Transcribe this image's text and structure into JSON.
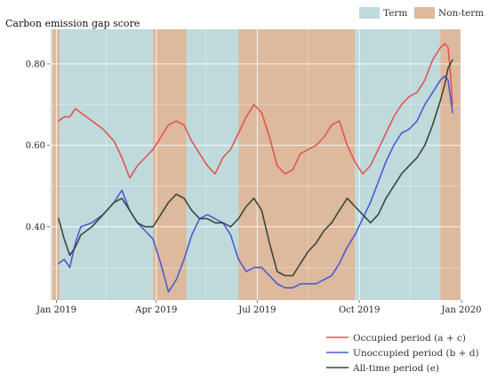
{
  "chart_data": {
    "type": "line",
    "title": "",
    "ylabel": "Carbon emission gap score",
    "xlabel": "",
    "x_range": [
      "2018-12-26",
      "2020-01-01"
    ],
    "ylim": [
      0.22,
      0.885
    ],
    "grid": true,
    "y_ticks": [
      {
        "value": 0.4,
        "label": "0.40"
      },
      {
        "value": 0.6,
        "label": "0.60"
      },
      {
        "value": 0.8,
        "label": "0.80"
      }
    ],
    "x_ticks": [
      {
        "value": "2019-01-01",
        "label": "Jan 2019"
      },
      {
        "value": "2019-04-01",
        "label": "Apr 2019"
      },
      {
        "value": "2019-07-01",
        "label": "Jul 2019"
      },
      {
        "value": "2019-10-01",
        "label": "Oct 2019"
      },
      {
        "value": "2020-01-01",
        "label": "Jan 2020"
      }
    ],
    "bands": [
      {
        "category": "Non-term",
        "start": "2018-12-28",
        "end": "2019-01-04"
      },
      {
        "category": "Term",
        "start": "2019-01-04",
        "end": "2019-03-29"
      },
      {
        "category": "Non-term",
        "start": "2019-03-29",
        "end": "2019-04-28"
      },
      {
        "category": "Term",
        "start": "2019-04-28",
        "end": "2019-06-14"
      },
      {
        "category": "Non-term",
        "start": "2019-06-14",
        "end": "2019-09-27"
      },
      {
        "category": "Term",
        "start": "2019-09-27",
        "end": "2019-12-13"
      },
      {
        "category": "Non-term",
        "start": "2019-12-13",
        "end": "2019-12-31"
      }
    ],
    "band_legend": [
      {
        "name": "Term",
        "color": "#bfdadb"
      },
      {
        "name": "Non-term",
        "color": "#ddb99d"
      }
    ],
    "series": [
      {
        "name": "Occupied period (a + c)",
        "color": "#e05555",
        "x": [
          "2019-01-03",
          "2019-01-08",
          "2019-01-13",
          "2019-01-18",
          "2019-01-23",
          "2019-02-02",
          "2019-02-12",
          "2019-02-22",
          "2019-03-01",
          "2019-03-08",
          "2019-03-15",
          "2019-03-22",
          "2019-03-29",
          "2019-04-05",
          "2019-04-12",
          "2019-04-19",
          "2019-04-26",
          "2019-05-03",
          "2019-05-10",
          "2019-05-17",
          "2019-05-24",
          "2019-05-31",
          "2019-06-07",
          "2019-06-14",
          "2019-06-21",
          "2019-06-28",
          "2019-07-05",
          "2019-07-12",
          "2019-07-19",
          "2019-07-26",
          "2019-08-02",
          "2019-08-09",
          "2019-08-16",
          "2019-08-23",
          "2019-08-30",
          "2019-09-06",
          "2019-09-13",
          "2019-09-20",
          "2019-09-27",
          "2019-10-04",
          "2019-10-11",
          "2019-10-18",
          "2019-10-25",
          "2019-11-01",
          "2019-11-08",
          "2019-11-15",
          "2019-11-22",
          "2019-11-29",
          "2019-12-06",
          "2019-12-13",
          "2019-12-17",
          "2019-12-20",
          "2019-12-22",
          "2019-12-24"
        ],
        "values": [
          0.66,
          0.67,
          0.67,
          0.69,
          0.68,
          0.66,
          0.64,
          0.61,
          0.57,
          0.52,
          0.55,
          0.57,
          0.59,
          0.62,
          0.65,
          0.66,
          0.65,
          0.61,
          0.58,
          0.55,
          0.53,
          0.57,
          0.59,
          0.63,
          0.67,
          0.7,
          0.68,
          0.62,
          0.55,
          0.53,
          0.54,
          0.58,
          0.59,
          0.6,
          0.62,
          0.65,
          0.66,
          0.6,
          0.56,
          0.53,
          0.55,
          0.59,
          0.63,
          0.67,
          0.7,
          0.72,
          0.73,
          0.76,
          0.81,
          0.84,
          0.85,
          0.84,
          0.78,
          0.7
        ]
      },
      {
        "name": "Unoccupied period (b + d)",
        "color": "#4a5ad6",
        "x": [
          "2019-01-03",
          "2019-01-08",
          "2019-01-13",
          "2019-01-18",
          "2019-01-23",
          "2019-02-02",
          "2019-02-12",
          "2019-02-22",
          "2019-03-01",
          "2019-03-08",
          "2019-03-15",
          "2019-03-22",
          "2019-03-29",
          "2019-04-05",
          "2019-04-12",
          "2019-04-19",
          "2019-04-26",
          "2019-05-03",
          "2019-05-10",
          "2019-05-17",
          "2019-05-24",
          "2019-05-31",
          "2019-06-07",
          "2019-06-14",
          "2019-06-21",
          "2019-06-28",
          "2019-07-05",
          "2019-07-12",
          "2019-07-19",
          "2019-07-26",
          "2019-08-02",
          "2019-08-09",
          "2019-08-16",
          "2019-08-23",
          "2019-08-30",
          "2019-09-06",
          "2019-09-13",
          "2019-09-20",
          "2019-09-27",
          "2019-10-04",
          "2019-10-11",
          "2019-10-18",
          "2019-10-25",
          "2019-11-01",
          "2019-11-08",
          "2019-11-15",
          "2019-11-22",
          "2019-11-29",
          "2019-12-06",
          "2019-12-13",
          "2019-12-17",
          "2019-12-20",
          "2019-12-22",
          "2019-12-24"
        ],
        "values": [
          0.31,
          0.32,
          0.3,
          0.36,
          0.4,
          0.41,
          0.43,
          0.46,
          0.49,
          0.44,
          0.41,
          0.39,
          0.37,
          0.31,
          0.24,
          0.27,
          0.32,
          0.38,
          0.42,
          0.43,
          0.42,
          0.41,
          0.38,
          0.32,
          0.29,
          0.3,
          0.3,
          0.28,
          0.26,
          0.25,
          0.25,
          0.26,
          0.26,
          0.26,
          0.27,
          0.28,
          0.31,
          0.35,
          0.38,
          0.42,
          0.46,
          0.51,
          0.56,
          0.6,
          0.63,
          0.64,
          0.66,
          0.7,
          0.73,
          0.76,
          0.77,
          0.76,
          0.72,
          0.68
        ]
      },
      {
        "name": "All-time period (e)",
        "color": "#3b473c",
        "x": [
          "2019-01-03",
          "2019-01-08",
          "2019-01-13",
          "2019-01-18",
          "2019-01-23",
          "2019-02-02",
          "2019-02-12",
          "2019-02-22",
          "2019-03-01",
          "2019-03-08",
          "2019-03-15",
          "2019-03-22",
          "2019-03-29",
          "2019-04-05",
          "2019-04-12",
          "2019-04-19",
          "2019-04-26",
          "2019-05-03",
          "2019-05-10",
          "2019-05-17",
          "2019-05-24",
          "2019-05-31",
          "2019-06-07",
          "2019-06-14",
          "2019-06-21",
          "2019-06-28",
          "2019-07-05",
          "2019-07-12",
          "2019-07-19",
          "2019-07-26",
          "2019-08-02",
          "2019-08-09",
          "2019-08-16",
          "2019-08-23",
          "2019-08-30",
          "2019-09-06",
          "2019-09-13",
          "2019-09-20",
          "2019-09-27",
          "2019-10-04",
          "2019-10-11",
          "2019-10-18",
          "2019-10-25",
          "2019-11-01",
          "2019-11-08",
          "2019-11-15",
          "2019-11-22",
          "2019-11-29",
          "2019-12-06",
          "2019-12-13",
          "2019-12-17",
          "2019-12-20",
          "2019-12-22",
          "2019-12-24"
        ],
        "values": [
          0.42,
          0.37,
          0.33,
          0.35,
          0.38,
          0.4,
          0.43,
          0.46,
          0.47,
          0.44,
          0.41,
          0.4,
          0.4,
          0.43,
          0.46,
          0.48,
          0.47,
          0.44,
          0.42,
          0.42,
          0.41,
          0.41,
          0.4,
          0.42,
          0.45,
          0.47,
          0.44,
          0.36,
          0.29,
          0.28,
          0.28,
          0.31,
          0.34,
          0.36,
          0.39,
          0.41,
          0.44,
          0.47,
          0.45,
          0.43,
          0.41,
          0.43,
          0.47,
          0.5,
          0.53,
          0.55,
          0.57,
          0.6,
          0.65,
          0.71,
          0.75,
          0.79,
          0.8,
          0.81
        ]
      }
    ],
    "legend": [
      "Occupied period (a + c)",
      "Unoccupied period (b + d)",
      "All-time period (e)"
    ]
  }
}
